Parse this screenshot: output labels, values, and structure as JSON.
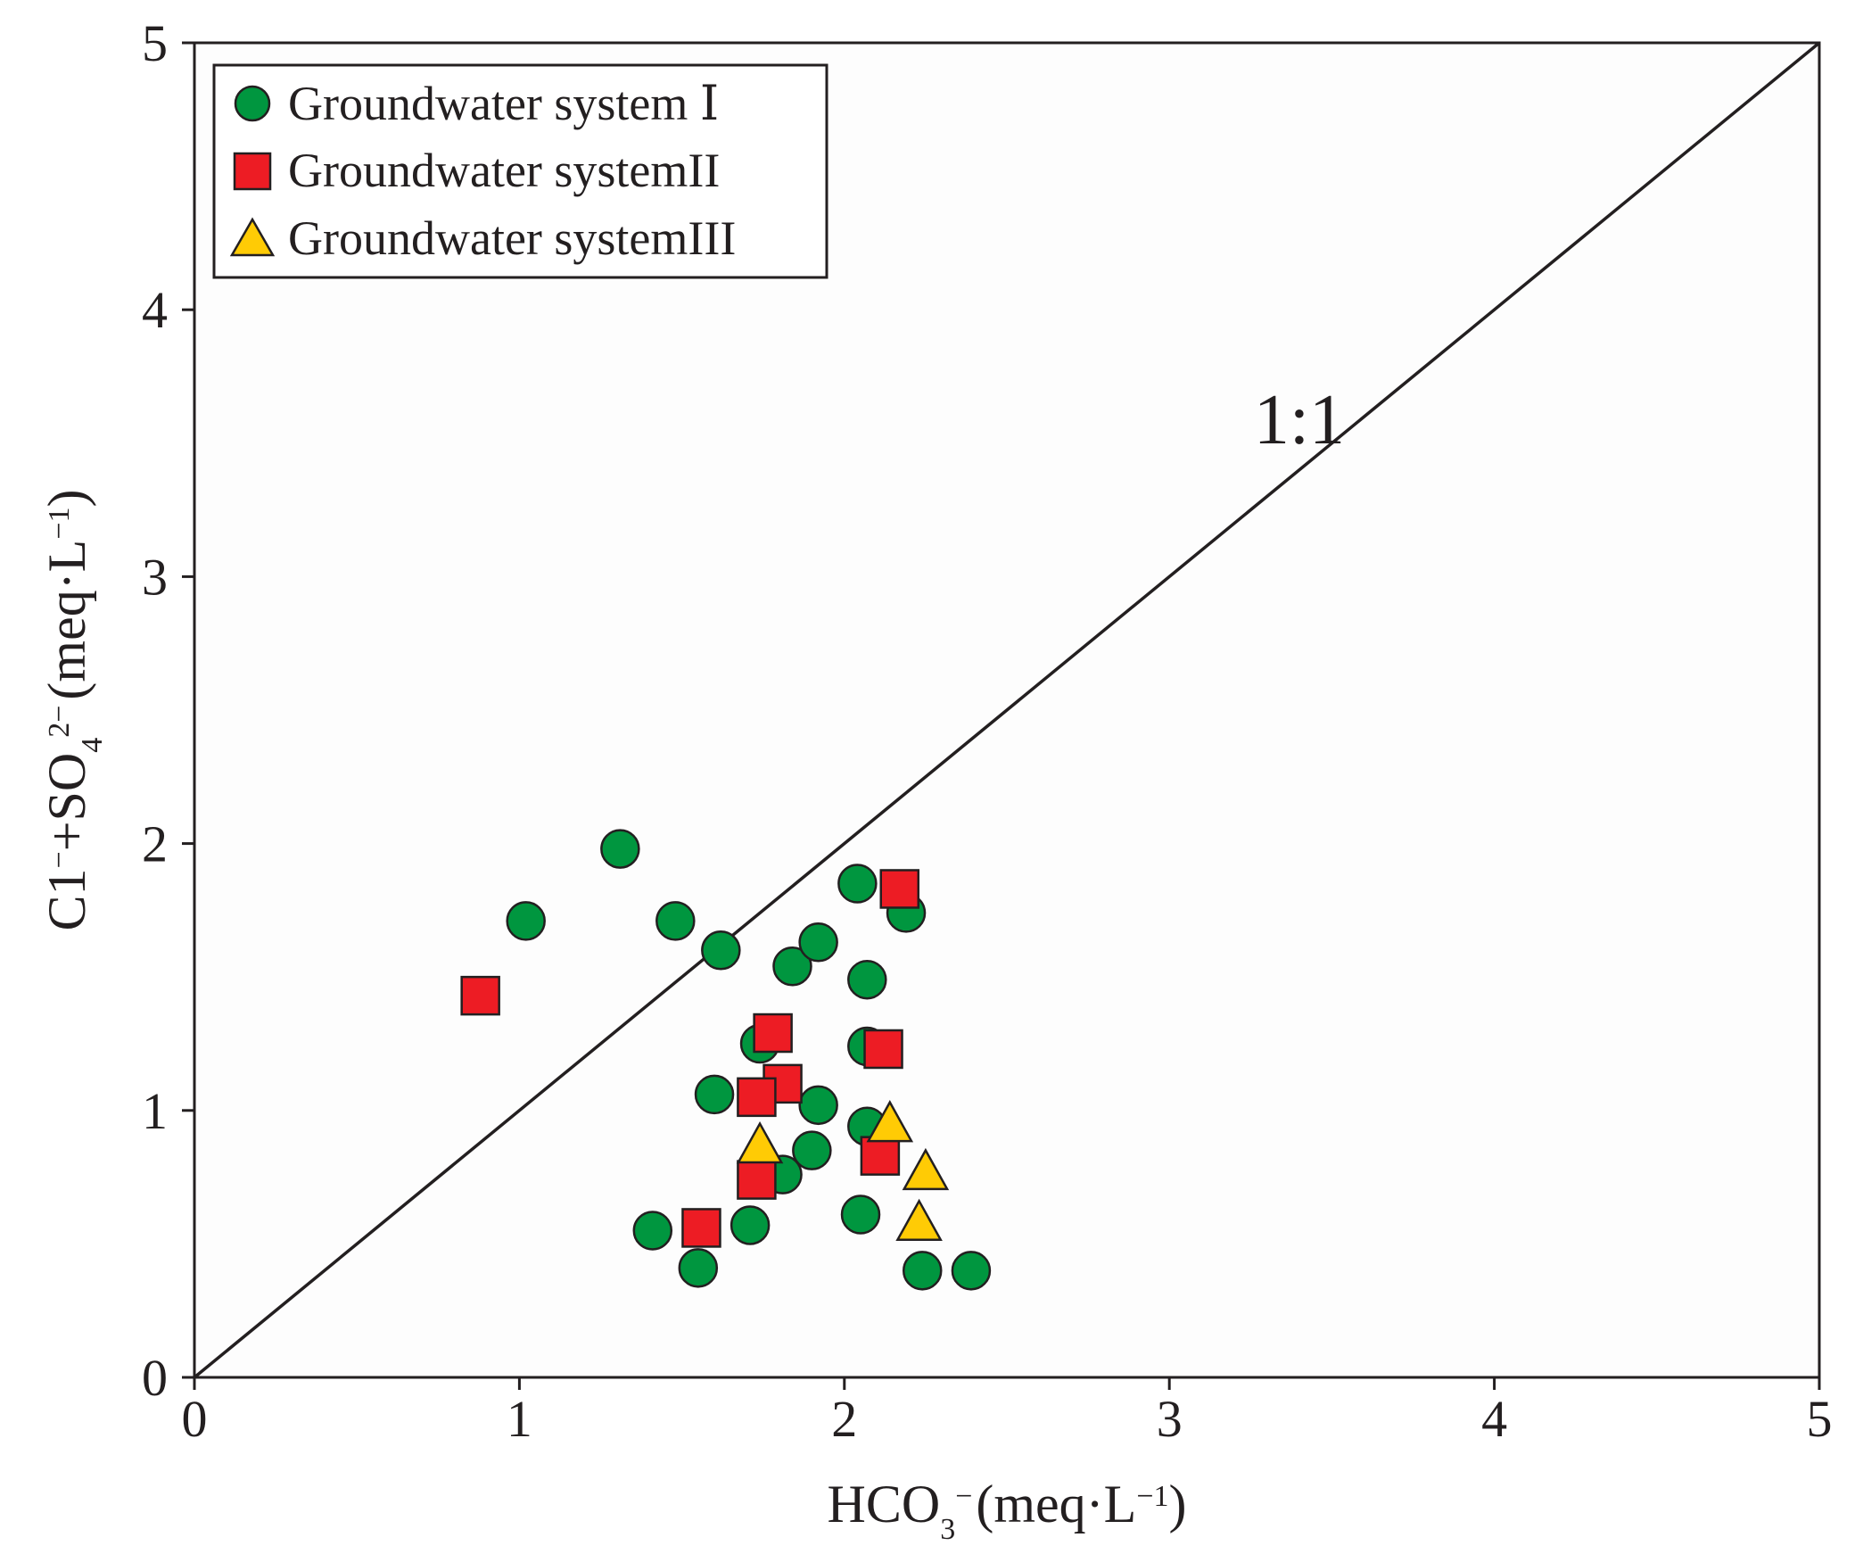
{
  "chart_data": {
    "type": "scatter",
    "title": "",
    "xlabel": {
      "base": "HCO",
      "sub": "3",
      "sup": "−",
      "unit": "(meq·L",
      "unit_sup": "−1",
      "unit_end": ")"
    },
    "ylabel": {
      "part1": "C1",
      "sup1": "−",
      "part2": "+SO",
      "sub2": "4",
      "sup2": "2−",
      "unit": "(meq·L",
      "unit_sup": "−1",
      "unit_end": ")"
    },
    "xlim": [
      0,
      5
    ],
    "ylim": [
      0,
      5
    ],
    "xticks": [
      "0",
      "1",
      "2",
      "3",
      "4",
      "5"
    ],
    "yticks": [
      "0",
      "1",
      "2",
      "3",
      "4",
      "5"
    ],
    "reference_line": {
      "label": "1:1",
      "from": [
        0,
        0
      ],
      "to": [
        5,
        5
      ]
    },
    "legend_position": "top-left",
    "series": [
      {
        "name": "Groundwater system Ⅰ",
        "marker": "circle",
        "color": "#00963f",
        "points": [
          [
            1.02,
            1.71
          ],
          [
            1.31,
            1.98
          ],
          [
            1.48,
            1.71
          ],
          [
            1.62,
            1.6
          ],
          [
            1.84,
            1.54
          ],
          [
            1.92,
            1.63
          ],
          [
            2.04,
            1.85
          ],
          [
            2.07,
            1.49
          ],
          [
            2.19,
            1.74
          ],
          [
            1.74,
            1.25
          ],
          [
            2.07,
            1.24
          ],
          [
            1.6,
            1.06
          ],
          [
            1.92,
            1.02
          ],
          [
            2.07,
            0.94
          ],
          [
            1.9,
            0.85
          ],
          [
            1.81,
            0.76
          ],
          [
            1.41,
            0.55
          ],
          [
            1.71,
            0.57
          ],
          [
            2.05,
            0.61
          ],
          [
            1.55,
            0.41
          ],
          [
            2.24,
            0.4
          ],
          [
            2.39,
            0.4
          ]
        ]
      },
      {
        "name": "Groundwater systemII",
        "marker": "square",
        "color": "#ed1c24",
        "points": [
          [
            0.88,
            1.43
          ],
          [
            2.17,
            1.83
          ],
          [
            1.78,
            1.29
          ],
          [
            2.12,
            1.23
          ],
          [
            1.81,
            1.1
          ],
          [
            1.73,
            1.05
          ],
          [
            2.11,
            0.83
          ],
          [
            1.73,
            0.74
          ],
          [
            1.56,
            0.56
          ]
        ]
      },
      {
        "name": "Groundwater systemIII",
        "marker": "triangle",
        "color": "#ffcb05",
        "points": [
          [
            1.74,
            0.87
          ],
          [
            2.14,
            0.95
          ],
          [
            2.25,
            0.77
          ],
          [
            2.23,
            0.58
          ]
        ]
      }
    ]
  }
}
